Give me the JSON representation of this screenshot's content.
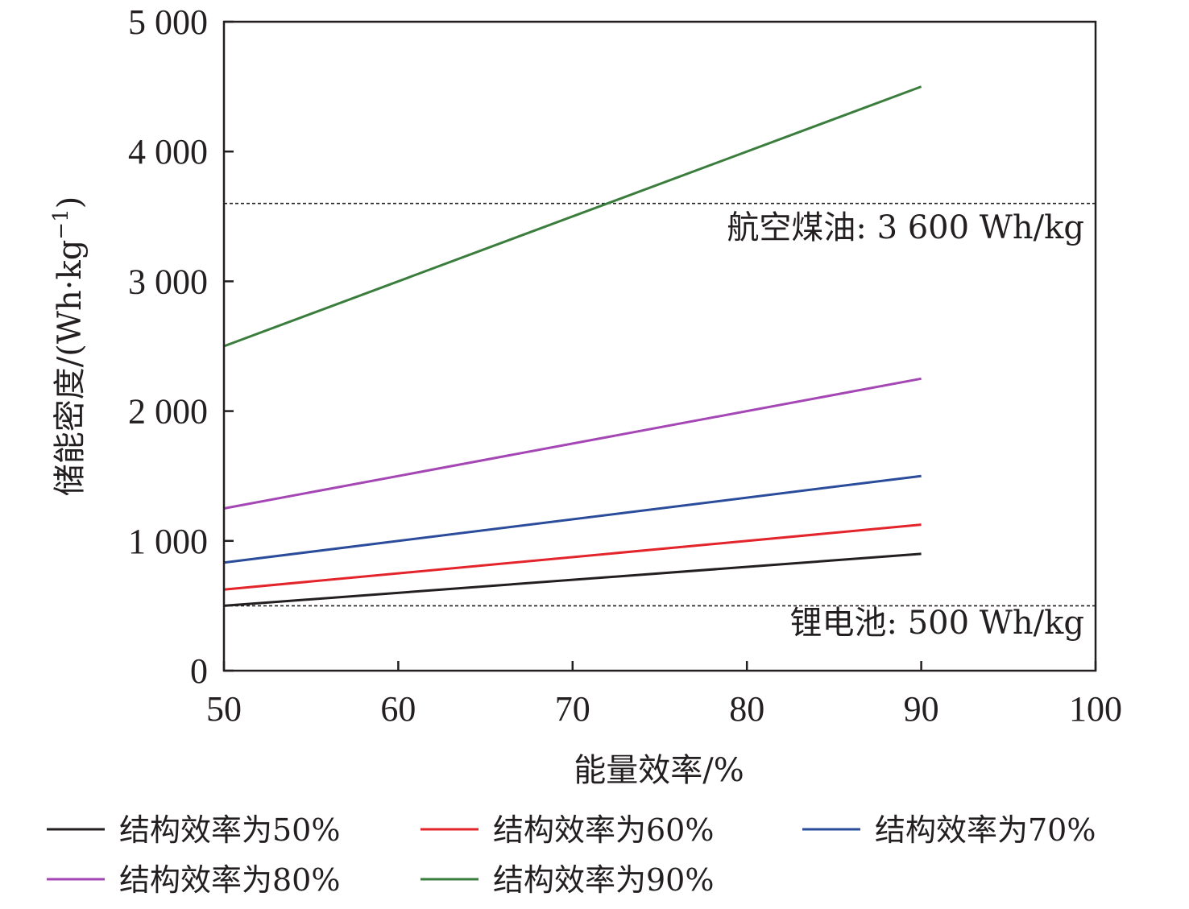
{
  "chart_data": {
    "type": "line",
    "xlabel": "能量效率/%",
    "ylabel": "储能密度/(Wh·kg",
    "ylabel_sup": "−1",
    "ylabel_close": ")",
    "xlim": [
      50,
      100
    ],
    "ylim": [
      0,
      5000
    ],
    "xticks": [
      50,
      60,
      70,
      80,
      90,
      100
    ],
    "xtick_labels": [
      "50",
      "60",
      "70",
      "80",
      "90",
      "100"
    ],
    "yticks": [
      0,
      1000,
      2000,
      3000,
      4000,
      5000
    ],
    "ytick_labels": [
      "0",
      "1 000",
      "2 000",
      "3 000",
      "4 000",
      "5 000"
    ],
    "grid": false,
    "legend_position": "bottom",
    "series": [
      {
        "name": "结构效率为50%",
        "color": "#231f20",
        "x": [
          50,
          90
        ],
        "y": [
          500,
          900
        ]
      },
      {
        "name": "结构效率为60%",
        "color": "#e3242b",
        "x": [
          50,
          90
        ],
        "y": [
          625,
          1125
        ]
      },
      {
        "name": "结构效率为70%",
        "color": "#2b4c9b",
        "x": [
          50,
          90
        ],
        "y": [
          833,
          1500
        ]
      },
      {
        "name": "结构效率为80%",
        "color": "#a447b5",
        "x": [
          50,
          90
        ],
        "y": [
          1250,
          2250
        ]
      },
      {
        "name": "结构效率为90%",
        "color": "#3a7d3c",
        "x": [
          50,
          90
        ],
        "y": [
          2500,
          4500
        ]
      }
    ],
    "reference_lines": [
      {
        "y": 3600,
        "label": "航空煤油: 3 600 Wh/kg",
        "style": "dashed",
        "color": "#231f20"
      },
      {
        "y": 500,
        "label": "锂电池: 500 Wh/kg",
        "style": "dashed",
        "color": "#231f20"
      }
    ]
  }
}
